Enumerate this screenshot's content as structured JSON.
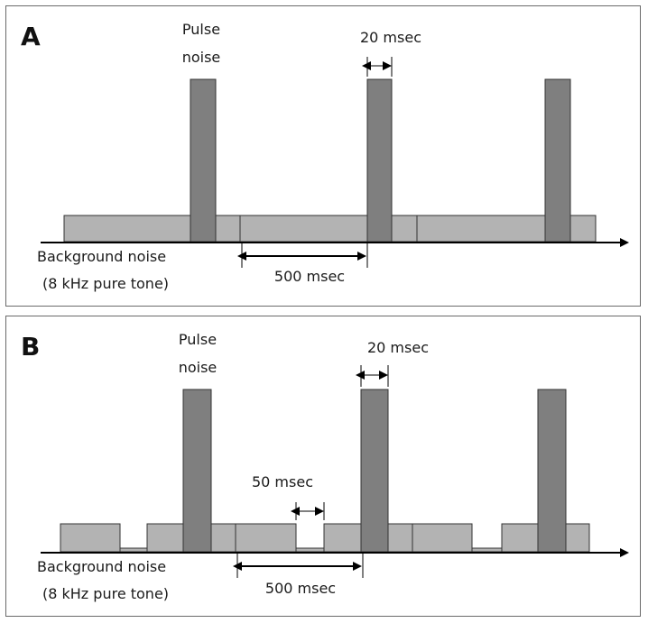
{
  "panels": [
    {
      "letter": "A",
      "pulse_label_line1": "Pulse",
      "pulse_label_line2": "noise",
      "pulse_width_label": "20 msec",
      "period_label": "500 msec",
      "bg_label_line1": "Background noise",
      "bg_label_line2": "(8 kHz pure tone)"
    },
    {
      "letter": "B",
      "pulse_label_line1": "Pulse",
      "pulse_label_line2": "noise",
      "pulse_width_label": "20 msec",
      "gap_label": "50 msec",
      "period_label": "500 msec",
      "bg_label_line1": "Background noise",
      "bg_label_line2": "(8 kHz pure tone)"
    }
  ],
  "colors": {
    "pulse": "#7f7f7f",
    "background_block": "#b3b3b3",
    "outline": "#333333",
    "arrow": "#000000"
  }
}
